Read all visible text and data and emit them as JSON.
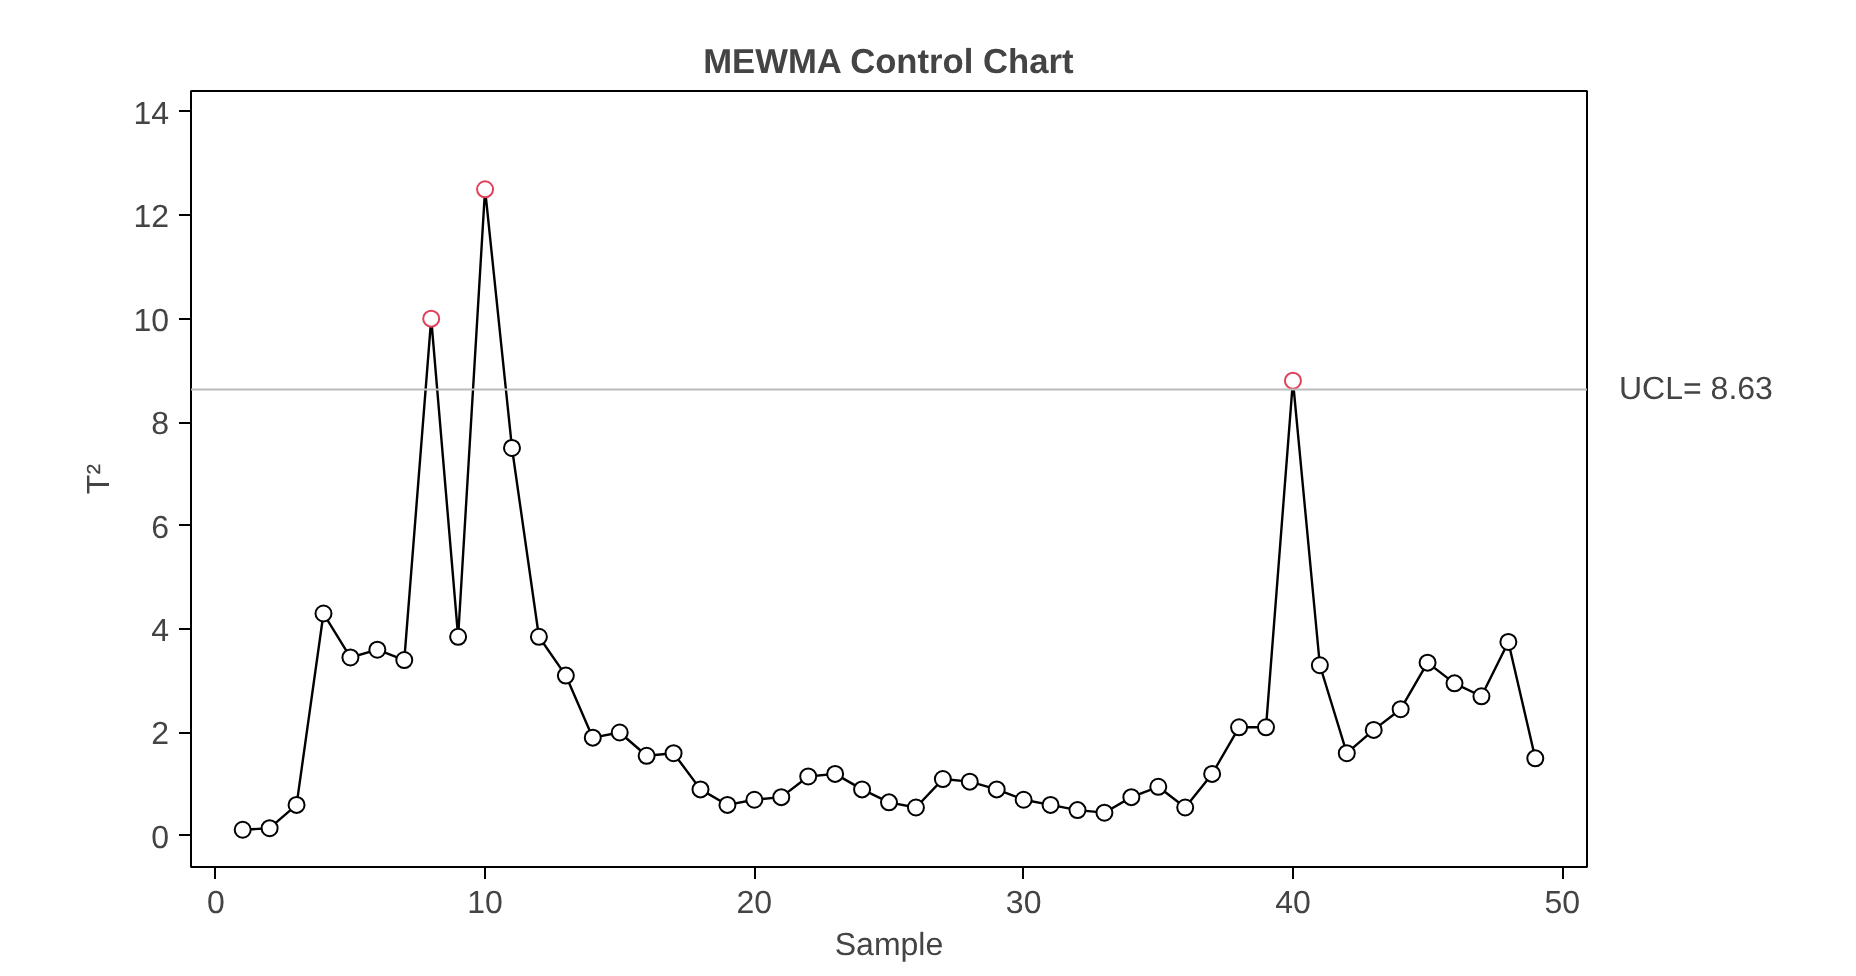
{
  "chart_data": {
    "type": "line",
    "title": "MEWMA Control Chart",
    "xlabel": "Sample",
    "ylabel": "T²",
    "x": [
      1,
      2,
      3,
      4,
      5,
      6,
      7,
      8,
      9,
      10,
      11,
      12,
      13,
      14,
      15,
      16,
      17,
      18,
      19,
      20,
      21,
      22,
      23,
      24,
      25,
      26,
      27,
      28,
      29,
      30,
      31,
      32,
      33,
      34,
      35,
      36,
      37,
      38,
      39,
      40,
      41,
      42,
      43,
      44,
      45,
      46,
      47,
      48,
      49
    ],
    "series": [
      {
        "color": "#000000",
        "values": [
          0.12,
          0.15,
          0.6,
          4.3,
          3.45,
          3.6,
          3.4,
          10.0,
          3.85,
          12.5,
          7.5,
          3.85,
          3.1,
          1.9,
          2.0,
          1.55,
          1.6,
          0.9,
          0.6,
          0.7,
          0.75,
          1.15,
          1.2,
          0.9,
          0.65,
          0.55,
          1.1,
          1.05,
          0.9,
          0.7,
          0.6,
          0.5,
          0.45,
          0.75,
          0.95,
          0.55,
          1.2,
          2.1,
          2.1,
          8.8,
          3.3,
          1.6,
          2.05,
          2.45,
          3.35,
          2.95,
          2.7,
          3.75,
          1.5
        ],
        "colors": [
          "#000000",
          "#000000",
          "#000000",
          "#000000",
          "#000000",
          "#000000",
          "#000000",
          "#e0405a",
          "#000000",
          "#e0405a",
          "#000000",
          "#000000",
          "#000000",
          "#000000",
          "#000000",
          "#000000",
          "#000000",
          "#000000",
          "#000000",
          "#000000",
          "#000000",
          "#000000",
          "#000000",
          "#000000",
          "#000000",
          "#000000",
          "#000000",
          "#000000",
          "#000000",
          "#000000",
          "#000000",
          "#000000",
          "#000000",
          "#000000",
          "#000000",
          "#000000",
          "#000000",
          "#000000",
          "#000000",
          "#e0405a",
          "#000000",
          "#000000",
          "#000000",
          "#000000",
          "#000000",
          "#000000",
          "#000000",
          "#000000",
          "#000000"
        ]
      }
    ],
    "xlim": [
      -0.92,
      50.92
    ],
    "xticks": [
      0,
      10,
      20,
      30,
      40,
      50
    ],
    "ylim": [
      -0.6,
      14.4
    ],
    "yticks": [
      0,
      2,
      4,
      6,
      8,
      10,
      12,
      14
    ],
    "ref_lines": [
      {
        "axis": "y",
        "value": 8.63,
        "label": "UCL= 8.63",
        "color": "#bbbbbb"
      }
    ],
    "marker": "circle",
    "grid": false
  }
}
